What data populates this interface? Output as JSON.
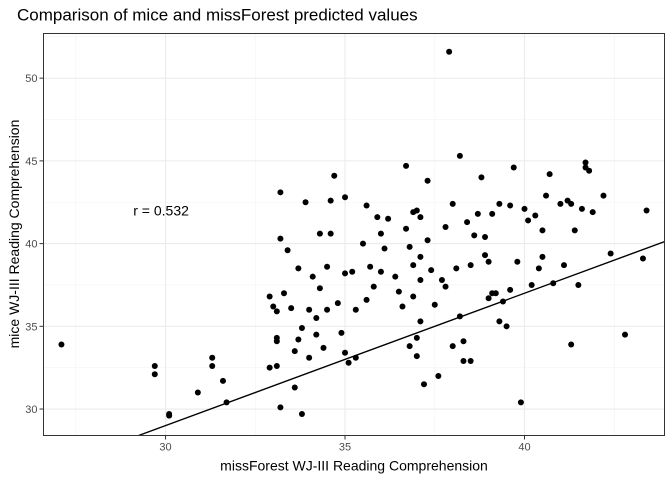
{
  "chart_data": {
    "type": "scatter",
    "title": "Comparison of mice and missForest predicted values",
    "xlabel": "missForest WJ-III Reading Comprehension",
    "ylabel": "mice WJ-III Reading Comprehension",
    "xlim": [
      26.6,
      43.9
    ],
    "ylim": [
      28.4,
      52.7
    ],
    "x_ticks": [
      30,
      35,
      40
    ],
    "y_ticks": [
      30,
      35,
      40,
      45,
      50
    ],
    "grid": true,
    "annotation": {
      "text": "r = 0.532",
      "x": 29.1,
      "y": 42.0
    },
    "fit_line": {
      "slope": 0.8,
      "intercept": 5.0
    },
    "x": [
      27.1,
      29.7,
      29.7,
      30.1,
      30.1,
      30.9,
      31.3,
      31.3,
      31.6,
      31.7,
      32.9,
      32.9,
      33.0,
      33.1,
      33.1,
      33.1,
      33.1,
      33.2,
      33.2,
      33.2,
      33.3,
      33.5,
      33.6,
      33.6,
      33.7,
      33.7,
      33.8,
      33.8,
      33.9,
      34.0,
      34.0,
      34.1,
      34.2,
      34.3,
      34.3,
      34.4,
      34.5,
      34.5,
      34.6,
      34.6,
      34.7,
      34.9,
      35.0,
      35.0,
      35.0,
      35.1,
      35.2,
      35.3,
      35.3,
      35.5,
      35.6,
      35.7,
      35.8,
      35.9,
      36.0,
      36.1,
      36.2,
      36.4,
      36.5,
      36.6,
      36.7,
      36.7,
      36.8,
      36.9,
      36.9,
      36.9,
      37.0,
      37.0,
      37.0,
      37.1,
      37.1,
      37.1,
      37.1,
      37.2,
      37.3,
      37.4,
      37.5,
      37.6,
      37.7,
      37.8,
      37.9,
      38.0,
      38.0,
      38.1,
      38.2,
      38.2,
      38.3,
      38.4,
      38.5,
      38.5,
      38.6,
      38.7,
      38.8,
      38.9,
      39.0,
      39.0,
      39.1,
      39.2,
      39.3,
      39.3,
      39.4,
      39.5,
      39.6,
      39.7,
      39.8,
      39.9,
      40.0,
      40.1,
      40.2,
      40.3,
      40.5,
      40.5,
      40.6,
      40.7,
      40.8,
      41.0,
      41.1,
      41.2,
      41.3,
      41.4,
      41.5,
      41.6,
      41.7,
      41.7,
      41.8,
      41.9,
      42.2,
      42.4,
      42.8,
      43.3,
      43.4,
      37.3,
      36.8,
      35.6,
      34.2,
      38.9,
      39.6,
      40.4,
      33.4,
      37.8,
      38.3,
      36.0,
      34.8,
      39.1,
      41.3
    ],
    "y": [
      33.9,
      32.1,
      32.6,
      29.6,
      29.7,
      31.0,
      32.6,
      33.1,
      31.7,
      30.4,
      32.5,
      36.8,
      36.2,
      35.9,
      32.6,
      34.1,
      34.3,
      43.1,
      30.1,
      40.3,
      37.0,
      36.1,
      33.5,
      31.3,
      34.2,
      38.5,
      34.9,
      29.7,
      42.5,
      36.0,
      33.1,
      38.0,
      34.5,
      40.6,
      37.3,
      33.7,
      36.0,
      38.6,
      40.6,
      42.6,
      44.1,
      34.6,
      38.2,
      42.8,
      33.4,
      32.8,
      38.3,
      36.0,
      33.1,
      40.0,
      42.3,
      38.6,
      37.4,
      41.6,
      40.6,
      39.7,
      41.5,
      38.0,
      37.1,
      36.2,
      44.7,
      40.9,
      39.8,
      41.9,
      38.7,
      36.8,
      34.3,
      33.2,
      42.0,
      39.2,
      41.6,
      35.3,
      37.8,
      31.5,
      40.2,
      38.4,
      36.3,
      32.0,
      37.8,
      41.0,
      51.6,
      42.4,
      33.8,
      38.5,
      45.3,
      35.6,
      32.9,
      41.3,
      32.9,
      38.7,
      40.5,
      41.8,
      44.0,
      40.4,
      38.9,
      36.7,
      41.8,
      37.0,
      35.3,
      42.4,
      36.5,
      35.0,
      42.3,
      44.6,
      38.9,
      30.4,
      42.1,
      41.4,
      37.5,
      41.7,
      39.2,
      40.8,
      42.9,
      44.2,
      37.6,
      42.4,
      38.7,
      42.6,
      42.4,
      40.8,
      37.5,
      42.1,
      44.9,
      44.6,
      44.4,
      41.9,
      42.9,
      39.4,
      34.5,
      39.1,
      42.0,
      43.8,
      33.8,
      36.6,
      35.5,
      39.3,
      37.2,
      38.5,
      39.6,
      37.4,
      34.1,
      38.3,
      36.4,
      37.0,
      33.9
    ]
  }
}
